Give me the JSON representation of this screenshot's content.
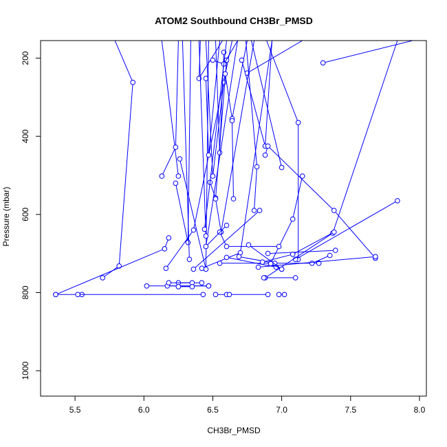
{
  "chart_data": {
    "type": "line",
    "title": "ATOM2 Southbound CH3Br_PMSD",
    "xlabel": "CH3Br_PMSD",
    "ylabel": "Pressure (mbar)",
    "xlim": [
      5.25,
      8.05
    ],
    "ylim": [
      1065,
      155
    ],
    "y_reversed": true,
    "xticks": [
      5.5,
      6.0,
      6.5,
      7.0,
      7.5,
      8.0
    ],
    "xtick_labels": [
      "5.5",
      "6.0",
      "6.5",
      "7.0",
      "7.5",
      "8.0"
    ],
    "yticks": [
      200,
      400,
      600,
      800,
      1000
    ],
    "ytick_labels": [
      "200",
      "400",
      "600",
      "800",
      "1000"
    ],
    "grid": false,
    "legend": "none",
    "series_color": "#0000ff",
    "series": [
      {
        "x": [
          5.79,
          5.92,
          5.82,
          5.7
        ],
        "y": [
          155,
          262,
          732,
          762
        ]
      },
      {
        "x": [
          5.36,
          5.55
        ],
        "y": [
          805,
          805
        ]
      },
      {
        "x": [
          5.52,
          6.43
        ],
        "y": [
          805,
          805
        ]
      },
      {
        "x": [
          6.52,
          6.6
        ],
        "y": [
          805,
          805
        ]
      },
      {
        "x": [
          6.62,
          6.9
        ],
        "y": [
          805,
          805
        ]
      },
      {
        "x": [
          6.98,
          7.02
        ],
        "y": [
          805,
          805
        ]
      },
      {
        "x": [
          5.36,
          6.15,
          6.18
        ],
        "y": [
          805,
          688,
          660
        ]
      },
      {
        "x": [
          6.02,
          6.47
        ],
        "y": [
          783,
          783
        ]
      },
      {
        "x": [
          6.17,
          6.47
        ],
        "y": [
          783,
          783
        ]
      },
      {
        "x": [
          6.25,
          6.42
        ],
        "y": [
          775,
          775
        ]
      },
      {
        "x": [
          6.18,
          6.35
        ],
        "y": [
          775,
          775
        ]
      },
      {
        "x": [
          6.25,
          6.35
        ],
        "y": [
          785,
          785
        ]
      },
      {
        "x": [
          6.13,
          6.25
        ],
        "y": [
          155,
          502
        ]
      },
      {
        "x": [
          6.13,
          6.23,
          6.25
        ],
        "y": [
          502,
          428,
          155
        ]
      },
      {
        "x": [
          6.23,
          6.32,
          6.34
        ],
        "y": [
          520,
          672,
          155
        ]
      },
      {
        "x": [
          6.26,
          6.45,
          6.47
        ],
        "y": [
          458,
          740,
          155
        ]
      },
      {
        "x": [
          6.16,
          6.36,
          6.64
        ],
        "y": [
          738,
          640,
          155
        ]
      },
      {
        "x": [
          6.28,
          6.33
        ],
        "y": [
          155,
          715
        ]
      },
      {
        "x": [
          6.41,
          6.4,
          6.57
        ],
        "y": [
          155,
          252,
          155
        ]
      },
      {
        "x": [
          6.45,
          6.47,
          6.55
        ],
        "y": [
          252,
          448,
          155
        ]
      },
      {
        "x": [
          6.45,
          6.5,
          6.58
        ],
        "y": [
          155,
          502,
          262
        ]
      },
      {
        "x": [
          6.48,
          6.52,
          6.6
        ],
        "y": [
          518,
          558,
          205
        ]
      },
      {
        "x": [
          6.52,
          6.55,
          6.58
        ],
        "y": [
          155,
          442,
          185
        ]
      },
      {
        "x": [
          6.5,
          6.58,
          6.68
        ],
        "y": [
          205,
          215,
          155
        ]
      },
      {
        "x": [
          6.59,
          6.64,
          6.75
        ],
        "y": [
          240,
          355,
          155
        ]
      },
      {
        "x": [
          6.64,
          6.65
        ],
        "y": [
          360,
          560
        ]
      },
      {
        "x": [
          6.71,
          6.88,
          6.93
        ],
        "y": [
          205,
          425,
          155
        ]
      },
      {
        "x": [
          6.75,
          7.15
        ],
        "y": [
          238,
          155
        ]
      },
      {
        "x": [
          6.74,
          6.82,
          6.8
        ],
        "y": [
          155,
          478,
          590
        ]
      },
      {
        "x": [
          6.78,
          7.0
        ],
        "y": [
          155,
          480
        ]
      },
      {
        "x": [
          6.88,
          6.9,
          7.38,
          7.68
        ],
        "y": [
          448,
          425,
          590,
          712
        ]
      },
      {
        "x": [
          6.89,
          7.12,
          7.12
        ],
        "y": [
          155,
          365,
          715
        ]
      },
      {
        "x": [
          7.15,
          7.08,
          6.92
        ],
        "y": [
          502,
          612,
          725
        ]
      },
      {
        "x": [
          7.1,
          7.84
        ],
        "y": [
          715,
          565
        ]
      },
      {
        "x": [
          7.84,
          7.37,
          6.88
        ],
        "y": [
          155,
          648,
          762
        ]
      },
      {
        "x": [
          6.52,
          6.56,
          6.8
        ],
        "y": [
          560,
          645,
          155
        ]
      },
      {
        "x": [
          6.55,
          6.6,
          6.98
        ],
        "y": [
          645,
          682,
          682
        ]
      },
      {
        "x": [
          6.6,
          6.45,
          6.68
        ],
        "y": [
          628,
          682,
          155
        ]
      },
      {
        "x": [
          6.4,
          6.45
        ],
        "y": [
          155,
          655
        ]
      },
      {
        "x": [
          6.44,
          6.6
        ],
        "y": [
          638,
          155
        ]
      },
      {
        "x": [
          6.36,
          6.84
        ],
        "y": [
          740,
          590
        ]
      },
      {
        "x": [
          6.42,
          6.7,
          6.93
        ],
        "y": [
          738,
          698,
          155
        ]
      },
      {
        "x": [
          6.55,
          7.27
        ],
        "y": [
          725,
          725
        ]
      },
      {
        "x": [
          6.69,
          6.95
        ],
        "y": [
          708,
          725
        ]
      },
      {
        "x": [
          6.6,
          6.96
        ],
        "y": [
          710,
          735
        ]
      },
      {
        "x": [
          6.76,
          7.0
        ],
        "y": [
          678,
          740
        ]
      },
      {
        "x": [
          6.9,
          7.39
        ],
        "y": [
          700,
          692
        ]
      },
      {
        "x": [
          6.92,
          7.0
        ],
        "y": [
          726,
          740
        ]
      },
      {
        "x": [
          7.35,
          7.22
        ],
        "y": [
          705,
          725
        ]
      },
      {
        "x": [
          6.86,
          7.08,
          7.38
        ],
        "y": [
          722,
          702,
          645
        ]
      },
      {
        "x": [
          6.83,
          7.68
        ],
        "y": [
          735,
          708
        ]
      },
      {
        "x": [
          6.87,
          7.1
        ],
        "y": [
          762,
          762
        ]
      },
      {
        "x": [
          7.95,
          7.3
        ],
        "y": [
          155,
          212
        ]
      }
    ]
  }
}
